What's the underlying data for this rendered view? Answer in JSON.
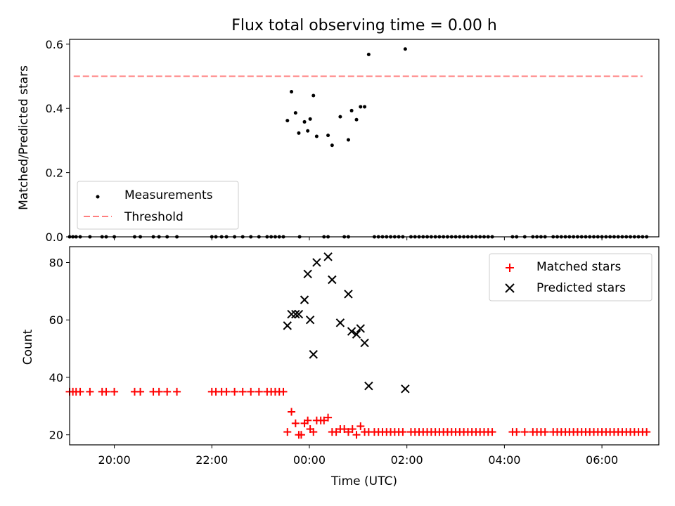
{
  "chart_data": [
    {
      "type": "scatter",
      "title": "Flux total observing time = 0.00 h",
      "xlabel": "",
      "ylabel": "Matched/Predicted stars",
      "x_axis": "time (UTC)",
      "xlim": [
        "19:05",
        "07:10"
      ],
      "ylim": [
        0,
        0.615
      ],
      "yticks": [
        "0.0",
        "0.2",
        "0.4",
        "0.6"
      ],
      "grid": false,
      "legend_position": "lower-left",
      "legend": [
        "Measurements",
        "Threshold"
      ],
      "threshold": {
        "name": "Threshold",
        "y": 0.5,
        "x_start": "19:10",
        "x_end": "06:50",
        "color": "#ff7f7f"
      },
      "series": [
        {
          "name": "Measurements",
          "marker": "dot",
          "color": "#000000",
          "points": [
            [
              "23:33",
              0.362
            ],
            [
              "23:38",
              0.452
            ],
            [
              "23:43",
              0.386
            ],
            [
              "23:47",
              0.323
            ],
            [
              "23:54",
              0.358
            ],
            [
              "23:58",
              0.33
            ],
            [
              "00:01",
              0.367
            ],
            [
              "00:05",
              0.44
            ],
            [
              "00:09",
              0.313
            ],
            [
              "00:23",
              0.316
            ],
            [
              "00:28",
              0.285
            ],
            [
              "00:38",
              0.374
            ],
            [
              "00:48",
              0.302
            ],
            [
              "00:52",
              0.393
            ],
            [
              "00:58",
              0.365
            ],
            [
              "01:03",
              0.405
            ],
            [
              "01:08",
              0.405
            ],
            [
              "01:13",
              0.568
            ],
            [
              "01:58",
              0.585
            ]
          ],
          "zero_x": [
            "19:05",
            "19:09",
            "19:13",
            "19:18",
            "19:30",
            "19:45",
            "19:50",
            "20:00",
            "20:25",
            "20:32",
            "20:48",
            "20:55",
            "21:05",
            "21:17",
            "22:00",
            "22:05",
            "22:12",
            "22:18",
            "22:28",
            "22:38",
            "22:48",
            "22:58",
            "23:08",
            "23:13",
            "23:18",
            "23:23",
            "23:28",
            "23:48",
            "00:18",
            "00:23",
            "00:43",
            "00:48",
            "01:20",
            "01:25",
            "01:30",
            "01:35",
            "01:40",
            "01:45",
            "01:50",
            "01:55",
            "02:05",
            "02:10",
            "02:15",
            "02:20",
            "02:25",
            "02:30",
            "02:35",
            "02:40",
            "02:45",
            "02:50",
            "02:55",
            "03:00",
            "03:05",
            "03:10",
            "03:15",
            "03:20",
            "03:25",
            "03:30",
            "03:35",
            "03:40",
            "03:45",
            "04:10",
            "04:15",
            "04:25",
            "04:35",
            "04:40",
            "04:45",
            "04:50",
            "05:00",
            "05:05",
            "05:10",
            "05:15",
            "05:20",
            "05:25",
            "05:30",
            "05:35",
            "05:40",
            "05:45",
            "05:50",
            "05:55",
            "06:00",
            "06:05",
            "06:10",
            "06:15",
            "06:20",
            "06:25",
            "06:30",
            "06:35",
            "06:40",
            "06:45",
            "06:50",
            "06:55"
          ]
        }
      ]
    },
    {
      "type": "scatter",
      "title": "",
      "xlabel": "Time (UTC)",
      "ylabel": "Count",
      "xlim": [
        "19:05",
        "07:10"
      ],
      "ylim": [
        16.5,
        85.5
      ],
      "xticks": [
        "20:00",
        "22:00",
        "00:00",
        "02:00",
        "04:00",
        "06:00"
      ],
      "yticks": [
        "20",
        "40",
        "60",
        "80"
      ],
      "grid": false,
      "legend_position": "top-right",
      "legend": [
        "Matched stars",
        "Predicted stars"
      ],
      "series": [
        {
          "name": "Matched stars",
          "marker": "plus",
          "color": "#ff0000",
          "groups": [
            {
              "y": 35,
              "x": [
                "19:05",
                "19:09",
                "19:13",
                "19:18",
                "19:30",
                "19:45",
                "19:50",
                "20:00",
                "20:25",
                "20:32",
                "20:48",
                "20:55",
                "21:05",
                "21:17",
                "22:00",
                "22:05",
                "22:12",
                "22:18",
                "22:28",
                "22:38",
                "22:48",
                "22:58",
                "23:08",
                "23:13",
                "23:18",
                "23:23",
                "23:28"
              ]
            },
            {
              "y": 21,
              "x": [
                "01:20",
                "01:25",
                "01:30",
                "01:35",
                "01:40",
                "01:45",
                "01:50",
                "01:55",
                "02:05",
                "02:10",
                "02:15",
                "02:20",
                "02:25",
                "02:30",
                "02:35",
                "02:40",
                "02:45",
                "02:50",
                "02:55",
                "03:00",
                "03:05",
                "03:10",
                "03:15",
                "03:20",
                "03:25",
                "03:30",
                "03:35",
                "03:40",
                "03:45",
                "04:10",
                "04:15",
                "04:25",
                "04:35",
                "04:40",
                "04:45",
                "04:50",
                "05:00",
                "05:05",
                "05:10",
                "05:15",
                "05:20",
                "05:25",
                "05:30",
                "05:35",
                "05:40",
                "05:45",
                "05:50",
                "05:55",
                "06:00",
                "06:05",
                "06:10",
                "06:15",
                "06:20",
                "06:25",
                "06:30",
                "06:35",
                "06:40",
                "06:45",
                "06:50",
                "06:55"
              ]
            }
          ],
          "points": [
            [
              "23:33",
              21
            ],
            [
              "23:38",
              28
            ],
            [
              "23:43",
              24
            ],
            [
              "23:47",
              20
            ],
            [
              "23:50",
              20
            ],
            [
              "23:54",
              24
            ],
            [
              "23:58",
              25
            ],
            [
              "00:01",
              22
            ],
            [
              "00:05",
              21
            ],
            [
              "00:09",
              25
            ],
            [
              "00:14",
              25
            ],
            [
              "00:18",
              25
            ],
            [
              "00:23",
              26
            ],
            [
              "00:28",
              21
            ],
            [
              "00:33",
              21
            ],
            [
              "00:38",
              22
            ],
            [
              "00:43",
              22
            ],
            [
              "00:48",
              21
            ],
            [
              "00:53",
              22
            ],
            [
              "00:58",
              20
            ],
            [
              "01:03",
              23
            ],
            [
              "01:08",
              21
            ],
            [
              "01:13",
              21
            ]
          ]
        },
        {
          "name": "Predicted stars",
          "marker": "x",
          "color": "#000000",
          "points": [
            [
              "23:33",
              58
            ],
            [
              "23:38",
              62
            ],
            [
              "23:43",
              62
            ],
            [
              "23:47",
              62
            ],
            [
              "23:54",
              67
            ],
            [
              "23:58",
              76
            ],
            [
              "00:01",
              60
            ],
            [
              "00:05",
              48
            ],
            [
              "00:09",
              80
            ],
            [
              "00:23",
              82
            ],
            [
              "00:28",
              74
            ],
            [
              "00:38",
              59
            ],
            [
              "00:48",
              69
            ],
            [
              "00:52",
              56
            ],
            [
              "00:58",
              55
            ],
            [
              "01:03",
              57
            ],
            [
              "01:08",
              52
            ],
            [
              "01:13",
              37
            ],
            [
              "01:58",
              36
            ]
          ]
        }
      ]
    }
  ]
}
